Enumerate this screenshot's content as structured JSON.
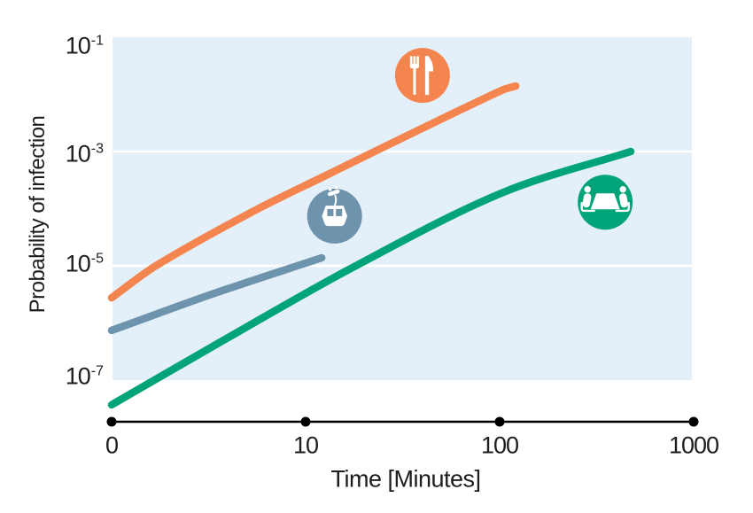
{
  "figure": {
    "background": "#FFFFFF",
    "plot_background": "#E3F0F9",
    "gridline_color": "#FFFFFF",
    "axis_color": "#000000",
    "text_color": "#1D1D1B"
  },
  "chart_data": {
    "type": "line",
    "title": "",
    "xlabel": "Time [Minutes]",
    "ylabel": "Probability of infection",
    "x_scale": "log",
    "y_scale": "log",
    "grid": "horizontal white gridlines at 10^-3 and 10^-5",
    "legend": "none (icon badges next to curves)",
    "ylim": [
      1e-07,
      0.1
    ],
    "x_ticks": [
      {
        "label": "0",
        "value": 1
      },
      {
        "label": "10",
        "value": 10
      },
      {
        "label": "100",
        "value": 100
      },
      {
        "label": "1000",
        "value": 1000
      }
    ],
    "y_ticks": [
      {
        "base": "10",
        "exp": "-1",
        "value": 0.1
      },
      {
        "base": "10",
        "exp": "-3",
        "value": 0.001
      },
      {
        "base": "10",
        "exp": "-5",
        "value": 1e-05
      },
      {
        "base": "10",
        "exp": "-7",
        "value": 1e-07
      }
    ],
    "series": [
      {
        "icon": "restaurant-icon",
        "color": "#F5854F",
        "points": [
          [
            1,
            2.76e-06
          ],
          [
            1.69,
            1e-05
          ],
          [
            5.2,
            8.5e-05
          ],
          [
            13,
            0.000395
          ],
          [
            23.2,
            0.00104
          ],
          [
            102,
            0.0117
          ],
          [
            121,
            0.014
          ]
        ],
        "icon_at": [
          40,
          0.0215
        ]
      },
      {
        "icon": "cable-car-icon",
        "color": "#6E93AD",
        "points": [
          [
            1,
            7.4e-07
          ],
          [
            3.3,
            3.2e-06
          ],
          [
            12.1,
            1.38e-05
          ]
        ],
        "icon_at": [
          14.1,
          7.4e-05
        ]
      },
      {
        "icon": "meeting-icon",
        "color": "#00A478",
        "points": [
          [
            1,
            3.7e-08
          ],
          [
            3.7,
            4.8e-07
          ],
          [
            17.1,
            9e-06
          ],
          [
            102,
            0.000187
          ],
          [
            474,
            0.001
          ]
        ],
        "icon_at": [
          350,
          0.00013
        ]
      }
    ]
  }
}
